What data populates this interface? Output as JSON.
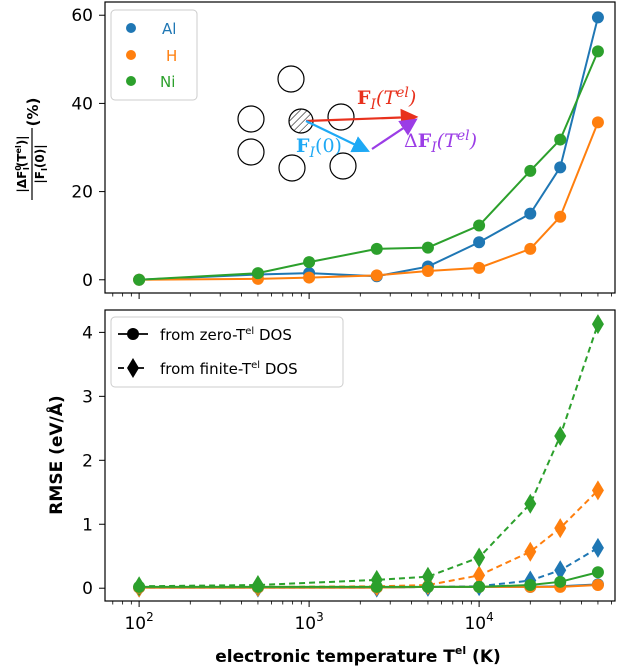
{
  "colors": {
    "al": "#1f77b4",
    "h": "#ff7f0e",
    "ni": "#2ca02c",
    "arrow_red": "#e8311d",
    "arrow_blue": "#1ea9f5",
    "arrow_purple": "#9b3de6"
  },
  "chart_data": [
    {
      "type": "line",
      "xscale": "log",
      "xlim": [
        63,
        63000
      ],
      "ylim": [
        -3,
        63
      ],
      "ylabel": "|ΔF_I^0(T^el)| / |F_I(0)| (%)",
      "ylabel_parts": {
        "num": "|ΔF",
        "num_sup": "0",
        "num_sub": "I",
        "num_arg": "(T",
        "num_arg_sup": "el",
        "num_end": ")|",
        "den": "|F",
        "den_sub": "I",
        "den_end": "(0)|",
        "unit": "(%)"
      },
      "xticks": [
        {
          "value": 100,
          "base": "10",
          "exp": "2"
        },
        {
          "value": 1000,
          "base": "10",
          "exp": "3"
        },
        {
          "value": 10000,
          "base": "10",
          "exp": "4"
        }
      ],
      "yticks": [
        0,
        20,
        40,
        60
      ],
      "legend": {
        "placement": "top-left",
        "entries": [
          "Al",
          "H",
          "Ni"
        ]
      },
      "series": [
        {
          "name": "Al",
          "color_key": "al",
          "x": [
            100,
            500,
            1000,
            2500,
            5000,
            10000,
            20000,
            30000,
            50000
          ],
          "y": [
            0,
            1.2,
            1.5,
            0.8,
            3.0,
            8.5,
            15.0,
            25.5,
            59.5
          ]
        },
        {
          "name": "H",
          "color_key": "h",
          "x": [
            100,
            500,
            1000,
            2500,
            5000,
            10000,
            20000,
            30000,
            50000
          ],
          "y": [
            0,
            0.2,
            0.5,
            1.0,
            2.0,
            2.7,
            7.0,
            14.3,
            35.7
          ]
        },
        {
          "name": "Ni",
          "color_key": "ni",
          "x": [
            100,
            500,
            1000,
            2500,
            5000,
            10000,
            20000,
            30000,
            50000
          ],
          "y": [
            0,
            1.5,
            4.0,
            7.0,
            7.3,
            12.3,
            24.7,
            31.8,
            51.8
          ]
        }
      ],
      "inset_labels": {
        "fi_tel": {
          "bold": "F",
          "sub": "I",
          "arg": "(T",
          "sup": "el",
          "end": ")"
        },
        "fi_0": {
          "bold": "F",
          "sub": "I",
          "arg": "(0)"
        },
        "dfi_tel": {
          "delta": "Δ",
          "bold": "F",
          "sub": "I",
          "arg": "(T",
          "sup": "el",
          "end": ")"
        }
      }
    },
    {
      "type": "line",
      "xscale": "log",
      "xlim": [
        63,
        63000
      ],
      "ylim": [
        -0.2,
        4.35
      ],
      "ylabel": "RMSE (eV/Å)",
      "xlabel": "electronic temperature T^el (K)",
      "xlabel_parts": {
        "pre": "electronic temperature T",
        "sup": "el",
        "post": " (K)"
      },
      "xticks": [
        {
          "value": 100,
          "base": "10",
          "exp": "2"
        },
        {
          "value": 1000,
          "base": "10",
          "exp": "3"
        },
        {
          "value": 10000,
          "base": "10",
          "exp": "4"
        }
      ],
      "yticks": [
        0,
        1,
        2,
        3,
        4
      ],
      "legend": {
        "placement": "top-left",
        "entries": [
          {
            "pre": "from zero-T",
            "sup": "el",
            "post": " DOS"
          },
          {
            "pre": "from finite-T",
            "sup": "el",
            "post": " DOS"
          }
        ]
      },
      "x": [
        100,
        500,
        2500,
        5000,
        10000,
        20000,
        30000,
        50000
      ],
      "series": [
        {
          "name": "Al",
          "style": "zero",
          "color_key": "al",
          "y": [
            0.01,
            0.01,
            0.01,
            0.02,
            0.02,
            0.02,
            0.03,
            0.06
          ]
        },
        {
          "name": "H",
          "style": "zero",
          "color_key": "h",
          "y": [
            0.01,
            0.01,
            0.01,
            0.02,
            0.02,
            0.02,
            0.02,
            0.05
          ]
        },
        {
          "name": "Ni",
          "style": "zero",
          "color_key": "ni",
          "y": [
            0.02,
            0.02,
            0.02,
            0.02,
            0.02,
            0.05,
            0.1,
            0.25
          ]
        },
        {
          "name": "Al",
          "style": "finite",
          "color_key": "al",
          "y": [
            0.01,
            0.01,
            0.01,
            0.02,
            0.03,
            0.12,
            0.28,
            0.63
          ]
        },
        {
          "name": "H",
          "style": "finite",
          "color_key": "h",
          "y": [
            0.01,
            0.02,
            0.03,
            0.05,
            0.2,
            0.57,
            0.94,
            1.53
          ]
        },
        {
          "name": "Ni",
          "style": "finite",
          "color_key": "ni",
          "y": [
            0.03,
            0.05,
            0.13,
            0.18,
            0.48,
            1.32,
            2.38,
            4.13
          ]
        }
      ]
    }
  ]
}
